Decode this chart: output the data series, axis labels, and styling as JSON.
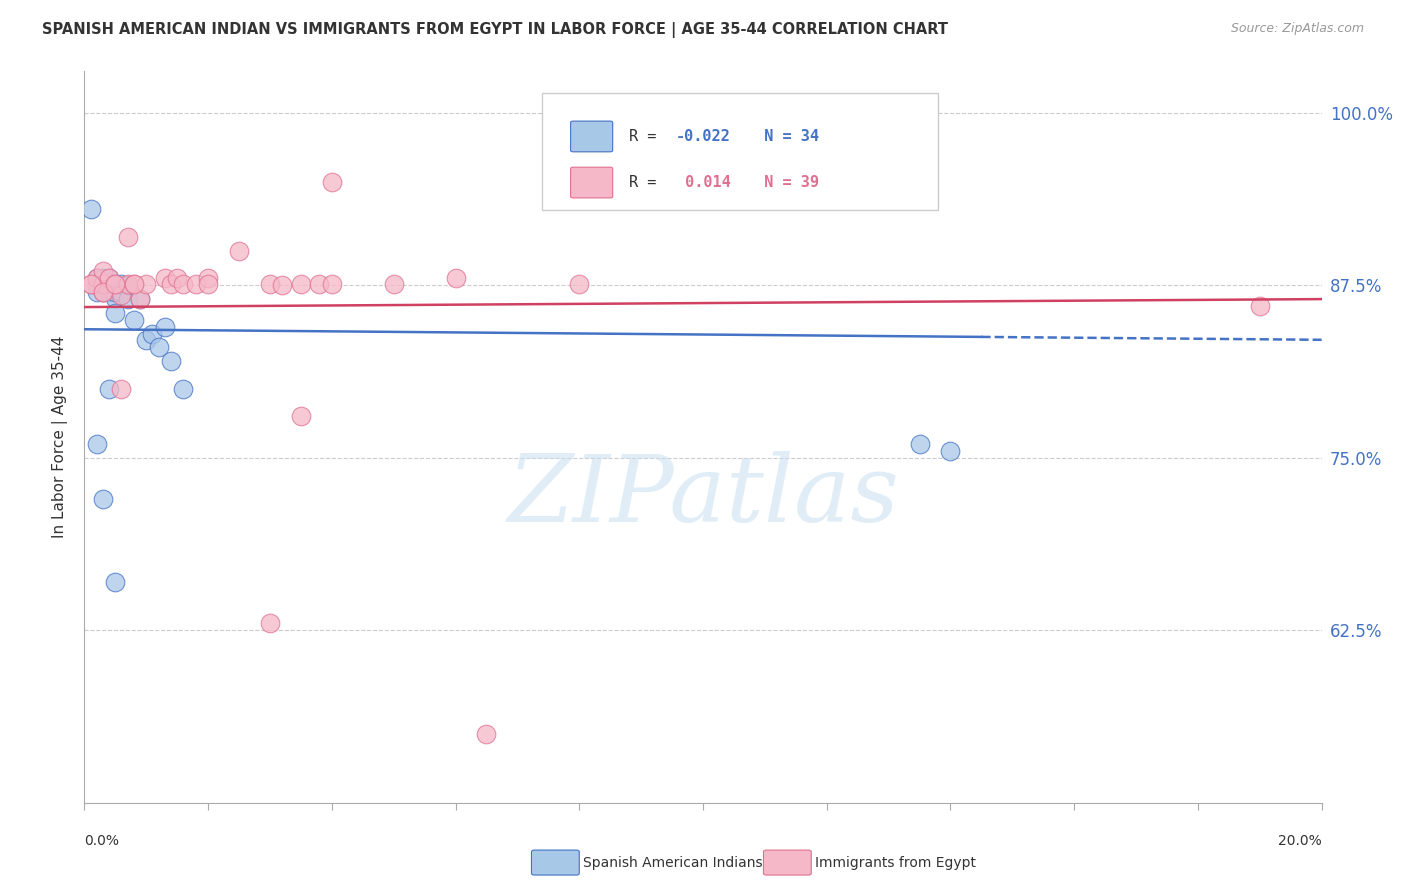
{
  "title": "SPANISH AMERICAN INDIAN VS IMMIGRANTS FROM EGYPT IN LABOR FORCE | AGE 35-44 CORRELATION CHART",
  "source": "Source: ZipAtlas.com",
  "ylabel": "In Labor Force | Age 35-44",
  "yticks": [
    0.625,
    0.75,
    0.875,
    1.0
  ],
  "ytick_labels": [
    "62.5%",
    "75.0%",
    "87.5%",
    "100.0%"
  ],
  "xlim": [
    0.0,
    0.2
  ],
  "ylim": [
    0.5,
    1.03
  ],
  "blue_R": -0.022,
  "blue_N": 34,
  "pink_R": 0.014,
  "pink_N": 39,
  "blue_fill_color": "#a8c8e8",
  "pink_fill_color": "#f5b8c8",
  "blue_edge_color": "#4472c4",
  "pink_edge_color": "#e07090",
  "blue_line_color": "#4472c4",
  "pink_line_color": "#d04060",
  "legend_label_blue": "Spanish American Indians",
  "legend_label_pink": "Immigrants from Egypt",
  "watermark": "ZIPatlas",
  "blue_x": [
    0.002,
    0.002,
    0.003,
    0.003,
    0.003,
    0.003,
    0.004,
    0.004,
    0.004,
    0.004,
    0.005,
    0.005,
    0.005,
    0.005,
    0.006,
    0.006,
    0.007,
    0.007,
    0.008,
    0.009,
    0.01,
    0.011,
    0.012,
    0.013,
    0.014,
    0.016,
    0.001,
    0.002,
    0.002,
    0.003,
    0.004,
    0.005,
    0.135,
    0.14
  ],
  "blue_y": [
    0.88,
    0.875,
    0.876,
    0.87,
    0.875,
    0.88,
    0.87,
    0.875,
    0.88,
    0.876,
    0.866,
    0.855,
    0.87,
    0.875,
    0.87,
    0.876,
    0.865,
    0.875,
    0.85,
    0.865,
    0.835,
    0.84,
    0.83,
    0.845,
    0.82,
    0.8,
    0.93,
    0.87,
    0.76,
    0.72,
    0.8,
    0.66,
    0.76,
    0.755
  ],
  "pink_x": [
    0.001,
    0.002,
    0.003,
    0.003,
    0.003,
    0.004,
    0.005,
    0.006,
    0.007,
    0.007,
    0.008,
    0.009,
    0.01,
    0.013,
    0.014,
    0.015,
    0.016,
    0.018,
    0.02,
    0.025,
    0.03,
    0.032,
    0.035,
    0.038,
    0.04,
    0.05,
    0.06,
    0.08,
    0.001,
    0.003,
    0.005,
    0.006,
    0.008,
    0.02,
    0.03,
    0.19,
    0.035,
    0.04,
    0.065
  ],
  "pink_y": [
    0.876,
    0.88,
    0.87,
    0.876,
    0.885,
    0.88,
    0.876,
    0.868,
    0.91,
    0.876,
    0.876,
    0.865,
    0.876,
    0.88,
    0.876,
    0.88,
    0.876,
    0.876,
    0.88,
    0.9,
    0.876,
    0.875,
    0.876,
    0.876,
    0.95,
    0.876,
    0.88,
    0.876,
    0.876,
    0.87,
    0.876,
    0.8,
    0.876,
    0.876,
    0.63,
    0.86,
    0.78,
    0.876,
    0.55
  ]
}
